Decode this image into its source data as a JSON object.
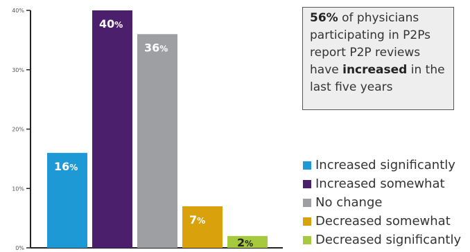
{
  "chart_data": {
    "type": "bar",
    "categories": [
      "Increased significantly",
      "Increased somewhat",
      "No change",
      "Decreased somewhat",
      "Decreased significantly"
    ],
    "values": [
      16,
      40,
      36,
      7,
      2
    ],
    "value_labels": [
      "16",
      "40",
      "36",
      "7",
      "2"
    ],
    "value_suffix": "%",
    "colors": [
      "#1d9ad6",
      "#4b1f6b",
      "#9d9fa2",
      "#d9a10b",
      "#a7c93d"
    ],
    "ylim": [
      0,
      40
    ],
    "yticks": [
      0,
      10,
      20,
      30,
      40
    ],
    "ytick_labels": [
      "0%",
      "10%",
      "20%",
      "30%",
      "40%"
    ],
    "grid": false,
    "legend_position": "right"
  },
  "callout": {
    "highlight": "56%",
    "text1": " of physicians participating in P2Ps report P2P reviews have ",
    "emphasis": "increased",
    "text2": " in the last five years"
  }
}
